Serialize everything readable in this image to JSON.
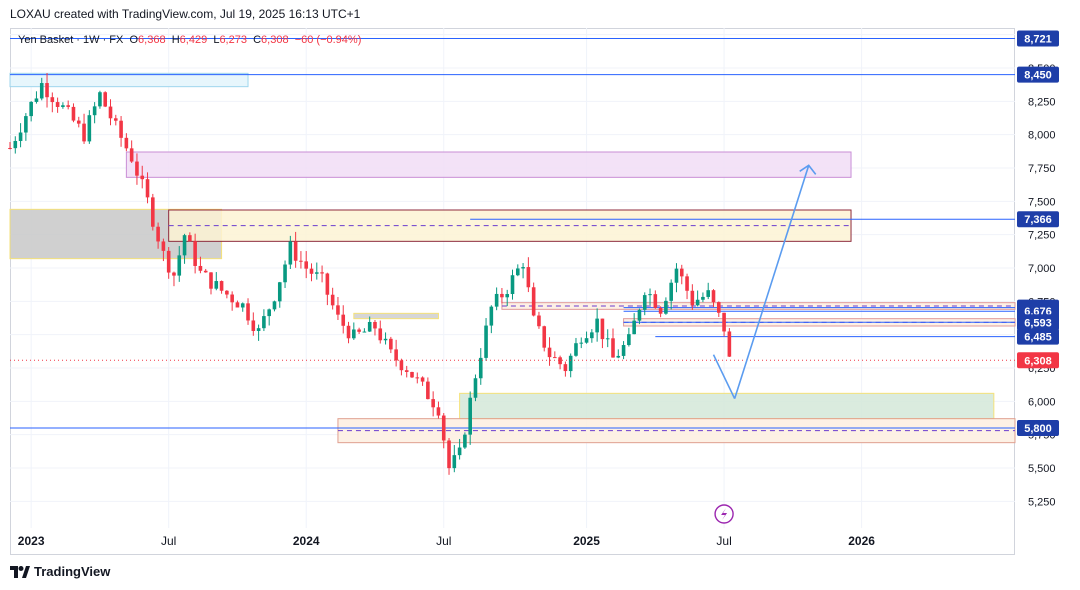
{
  "header": {
    "attribution": "LOXAU created with TradingView.com, Jul 19, 2025 16:13 UTC+1"
  },
  "legend": {
    "symbol": "Yen Basket · 1W · FX",
    "o_label": "O",
    "o": "6,368",
    "h_label": "H",
    "h": "6,429",
    "l_label": "L",
    "l": "6,273",
    "c_label": "C",
    "c": "6,308",
    "change": "−60 (−0.94%)"
  },
  "footer": {
    "brand": "TradingView"
  },
  "colors": {
    "up": "#089981",
    "down": "#f23645",
    "hline": "#2962ff",
    "arrow": "#5b9cf0",
    "grid": "#f0f3fa",
    "current_price": "#f23645"
  },
  "chart_data": {
    "type": "candlestick",
    "timeframe": "1W",
    "ylim": [
      5050,
      8800
    ],
    "y_ticks": [
      5250,
      5500,
      5750,
      6000,
      6250,
      6500,
      6750,
      7000,
      7250,
      7500,
      7750,
      8000,
      8250,
      8500,
      8750
    ],
    "y_tick_labels": [
      "5,250",
      "5,500",
      "5,750",
      "6,000",
      "6,250",
      "6,500",
      "6,750",
      "7,000",
      "7,250",
      "7,500",
      "7,750",
      "8,000",
      "8,250",
      "8,500",
      "8,750"
    ],
    "x_range": [
      "2022-12-05",
      "2026-07-27"
    ],
    "x_ticks": [
      {
        "date": "2023-01-02",
        "label": "2023",
        "bold": true
      },
      {
        "date": "2023-07-03",
        "label": "Jul",
        "bold": false
      },
      {
        "date": "2024-01-01",
        "label": "2024",
        "bold": true
      },
      {
        "date": "2024-07-01",
        "label": "Jul",
        "bold": false
      },
      {
        "date": "2025-01-06",
        "label": "2025",
        "bold": true
      },
      {
        "date": "2025-07-07",
        "label": "Jul",
        "bold": false
      },
      {
        "date": "2026-01-05",
        "label": "2026",
        "bold": true
      }
    ],
    "price_labels": [
      {
        "value": 8721,
        "label": "8,721",
        "color": "#1e3ea8"
      },
      {
        "value": 8450,
        "label": "8,450",
        "color": "#1e3ea8"
      },
      {
        "value": 7366,
        "label": "7,366",
        "color": "#1e3ea8"
      },
      {
        "value": 6703,
        "label": "6,703",
        "color": "#1e3ea8"
      },
      {
        "value": 6676,
        "label": "6,676",
        "color": "#1e3ea8"
      },
      {
        "value": 6593,
        "label": "6,593",
        "color": "#1e3ea8"
      },
      {
        "value": 6485,
        "label": "6,485",
        "color": "#1e3ea8"
      },
      {
        "value": 6308,
        "label": "6,308",
        "color": "#f23645"
      },
      {
        "value": 5800,
        "label": "5,800",
        "color": "#1e3ea8"
      }
    ],
    "horizontal_lines": [
      {
        "value": 8721,
        "from": "2022-12-05",
        "to": "2026-07-27"
      },
      {
        "value": 8450,
        "from": "2022-12-05",
        "to": "2026-07-27"
      },
      {
        "value": 7366,
        "from": "2024-08-05",
        "to": "2026-07-27"
      },
      {
        "value": 6703,
        "from": "2025-02-24",
        "to": "2026-07-27"
      },
      {
        "value": 6676,
        "from": "2025-02-24",
        "to": "2026-07-27"
      },
      {
        "value": 6593,
        "from": "2025-02-24",
        "to": "2026-07-27"
      },
      {
        "value": 6485,
        "from": "2025-04-07",
        "to": "2026-07-27"
      },
      {
        "value": 5800,
        "from": "2022-12-05",
        "to": "2026-07-27"
      }
    ],
    "zones": [
      {
        "from": "2022-12-05",
        "to": "2023-10-16",
        "top": 8460,
        "bottom": 8360,
        "fill": "#e3f4fb",
        "stroke": "#9fd6ee",
        "dashed_mid": false
      },
      {
        "from": "2023-05-08",
        "to": "2025-12-22",
        "top": 7870,
        "bottom": 7680,
        "fill": "#f1ddf6",
        "stroke": "#c98ed6",
        "dashed_mid": false
      },
      {
        "from": "2022-12-05",
        "to": "2023-09-11",
        "top": 7440,
        "bottom": 7070,
        "fill": "#c8c8c8",
        "stroke": "#f5e27a",
        "dashed_mid": false
      },
      {
        "from": "2023-07-03",
        "to": "2025-12-22",
        "top": 7435,
        "bottom": 7200,
        "fill": "#fdf3d4",
        "stroke": "#8e2a3c",
        "dashed_mid": true
      },
      {
        "from": "2024-03-04",
        "to": "2024-06-24",
        "top": 6660,
        "bottom": 6620,
        "fill": "#cfcfcf",
        "stroke": "#f5e27a",
        "dashed_mid": false
      },
      {
        "from": "2024-09-16",
        "to": "2026-07-27",
        "top": 6740,
        "bottom": 6690,
        "fill": "#fdeee0",
        "stroke": "#e09a9a",
        "dashed_mid": true
      },
      {
        "from": "2025-02-24",
        "to": "2026-07-27",
        "top": 6620,
        "bottom": 6565,
        "fill": "#fdeee0",
        "stroke": "#e09a9a",
        "dashed_mid": true
      },
      {
        "from": "2024-07-22",
        "to": "2026-06-29",
        "top": 6060,
        "bottom": 5870,
        "fill": "#d4e8d8",
        "stroke": "#f5e27a",
        "dashed_mid": false
      },
      {
        "from": "2024-02-12",
        "to": "2026-07-27",
        "top": 5870,
        "bottom": 5690,
        "fill": "#fdeee0",
        "stroke": "#e0a090",
        "dashed_mid": true
      }
    ],
    "projection_arrow": {
      "points": [
        {
          "date": "2025-07-21",
          "value": 6020
        },
        {
          "date": "2025-10-27",
          "value": 7770
        }
      ]
    },
    "candles": []
  }
}
